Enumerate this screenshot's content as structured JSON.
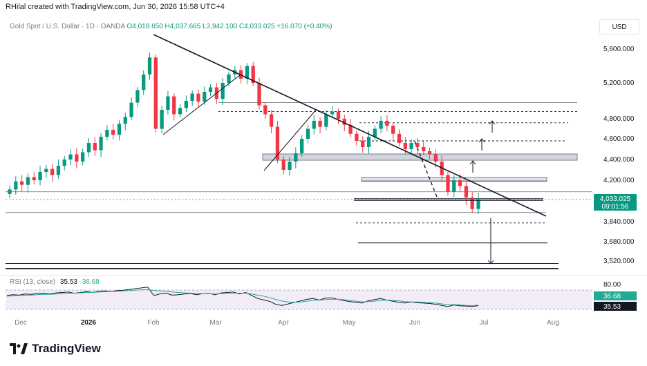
{
  "header": {
    "credit": "RHilal created with TradingView.com, Jun 30, 2026 15:58 UTC+4",
    "symbol": "Gold Spot / U.S. Dollar · 1D · OANDA",
    "open": "O4,018.650",
    "high": "H4,037.665",
    "low": "L3,942.100",
    "close": "C4,033.025",
    "change": "+16.070 (+0.40%)",
    "currency": "USD"
  },
  "price_tag": {
    "value": "4,033.025",
    "countdown": "09:01:56"
  },
  "rsi": {
    "label": "RSI (13, close)",
    "value1": "35.53",
    "value2": "36.68",
    "upper": "80.00"
  },
  "footer": {
    "brand": "TradingView"
  },
  "colors": {
    "up": "#089981",
    "down": "#f23645",
    "rsi": "#7e57c2",
    "rsi_ma": "#22ab94"
  },
  "chart_data": {
    "type": "candlestick",
    "y_ticks": [
      "5,600.000",
      "5,200.000",
      "4,800.000",
      "4,600.000",
      "4,400.000",
      "4,200.000",
      "3,840.000",
      "3,680.000",
      "3,520.000"
    ],
    "x_ticks": [
      "Dec",
      "2026",
      "Feb",
      "Mar",
      "Apr",
      "May",
      "Jun",
      "Jul",
      "Aug"
    ],
    "ylim": [
      3480,
      5800
    ],
    "last_price": 4033.025,
    "closes": [
      4120,
      4190,
      4160,
      4230,
      4200,
      4280,
      4310,
      4250,
      4340,
      4400,
      4450,
      4380,
      4470,
      4560,
      4490,
      4620,
      4690,
      4640,
      4750,
      4820,
      4980,
      5120,
      5300,
      5500,
      4700,
      4900,
      5050,
      4850,
      4920,
      5000,
      5080,
      4990,
      5100,
      5150,
      5020,
      5200,
      5300,
      5350,
      5250,
      5400,
      5200,
      4950,
      4850,
      4720,
      4400,
      4300,
      4380,
      4460,
      4600,
      4700,
      4780,
      4720,
      4850,
      4880,
      4800,
      4740,
      4650,
      4580,
      4520,
      4620,
      4700,
      4780,
      4730,
      4650,
      4560,
      4500,
      4560,
      4520,
      4480,
      4450,
      4380,
      4250,
      4100,
      4200,
      4150,
      4050,
      3950,
      4033
    ],
    "horizontal_levels": [
      4980,
      4880,
      4760,
      4580,
      4420,
      4190,
      4100,
      4040,
      3920,
      3830,
      3670,
      3500
    ],
    "rsi_values": [
      62,
      64,
      63,
      66,
      65,
      67,
      68,
      66,
      69,
      70,
      71,
      68,
      70,
      72,
      70,
      73,
      74,
      72,
      75,
      76,
      78,
      80,
      82,
      84,
      62,
      66,
      68,
      63,
      64,
      66,
      67,
      64,
      67,
      68,
      64,
      69,
      70,
      71,
      66,
      70,
      62,
      54,
      50,
      46,
      38,
      36,
      40,
      44,
      48,
      52,
      54,
      50,
      55,
      56,
      52,
      49,
      46,
      44,
      42,
      48,
      51,
      54,
      50,
      47,
      44,
      42,
      45,
      43,
      42,
      41,
      39,
      36,
      33,
      37,
      35,
      34,
      33,
      35.53
    ],
    "rsi_ma_values": [
      60,
      61,
      62,
      63,
      63,
      64,
      65,
      65,
      66,
      67,
      68,
      68,
      69,
      70,
      70,
      71,
      72,
      72,
      73,
      74,
      75,
      76,
      77,
      78,
      75,
      74,
      73,
      71,
      70,
      69,
      68,
      67,
      67,
      67,
      66,
      67,
      68,
      68,
      68,
      68,
      66,
      63,
      60,
      56,
      51,
      47,
      45,
      44,
      45,
      47,
      49,
      50,
      51,
      52,
      52,
      51,
      49,
      47,
      45,
      46,
      47,
      49,
      50,
      49,
      48,
      46,
      45,
      45,
      44,
      43,
      42,
      40,
      38,
      38,
      37,
      36,
      35,
      36.68
    ]
  }
}
